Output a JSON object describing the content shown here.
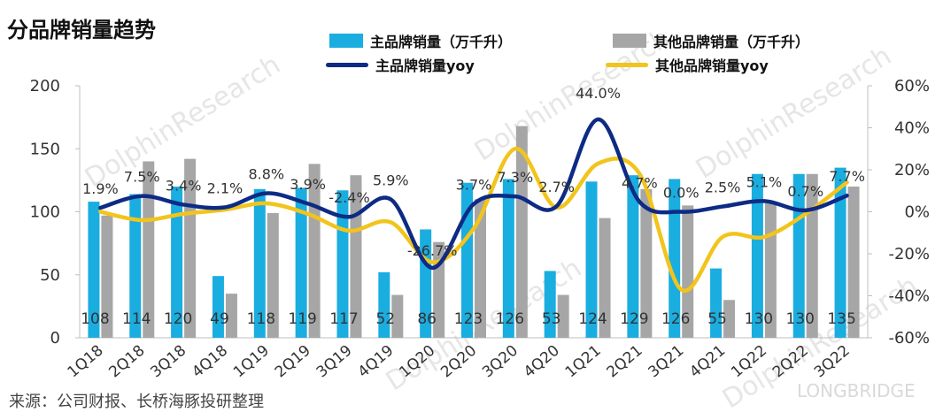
{
  "header": {
    "title": "分品牌销量趋势"
  },
  "footer": {
    "source": "来源：公司财报、长桥海豚投研整理"
  },
  "watermarks": {
    "brand": "DolphinResearch",
    "footer_brand": "LONGBRIDGE"
  },
  "legend": {
    "main_volume": "主品牌销量（万千升）",
    "other_volume": "其他品牌销量（万千升）",
    "main_yoy": "主品牌销量yoy",
    "other_yoy": "其他品牌销量yoy"
  },
  "colors": {
    "main_bar": "#1AADE0",
    "other_bar": "#A6A6A6",
    "main_line": "#0D2B85",
    "other_line": "#F2C41C",
    "axis": "#BFBFBF",
    "text": "#333333"
  },
  "chart_data": {
    "type": "bar",
    "title": "分品牌销量趋势",
    "xlabel": "",
    "ylabel": "",
    "categories": [
      "1Q18",
      "2Q18",
      "3Q18",
      "4Q18",
      "1Q19",
      "2Q19",
      "3Q19",
      "4Q19",
      "1Q20",
      "2Q20",
      "3Q20",
      "4Q20",
      "1Q21",
      "2Q21",
      "3Q21",
      "4Q21",
      "1Q22",
      "2Q22",
      "3Q22"
    ],
    "ylim": [
      0,
      200
    ],
    "y_ticks": [
      0,
      50,
      100,
      150,
      200
    ],
    "y2lim": [
      -60,
      60
    ],
    "y2_ticks": [
      "-60%",
      "-40%",
      "-20%",
      "0%",
      "20%",
      "40%",
      "60%"
    ],
    "grid": false,
    "legend_position": "top",
    "series": [
      {
        "name": "主品牌销量（万千升）",
        "kind": "bar",
        "axis": "left",
        "values": [
          108,
          114,
          120,
          49,
          118,
          119,
          117,
          52,
          86,
          123,
          126,
          53,
          124,
          129,
          126,
          55,
          130,
          130,
          135
        ],
        "labels": [
          "108",
          "114",
          "120",
          "49",
          "118",
          "119",
          "117",
          "52",
          "86",
          "123",
          "126",
          "53",
          "124",
          "129",
          "126",
          "55",
          "130",
          "130",
          "135"
        ]
      },
      {
        "name": "其他品牌销量（万千升）",
        "kind": "bar",
        "axis": "left",
        "values": [
          97,
          140,
          142,
          35,
          99,
          138,
          129,
          34,
          76,
          110,
          168,
          34,
          95,
          118,
          105,
          30,
          108,
          130,
          120
        ]
      },
      {
        "name": "主品牌销量yoy",
        "kind": "line",
        "axis": "right",
        "values": [
          1.9,
          7.5,
          3.4,
          2.1,
          8.8,
          3.9,
          -2.4,
          5.9,
          -26.7,
          3.7,
          7.3,
          2.7,
          44.0,
          4.7,
          0.0,
          2.5,
          5.1,
          0.7,
          7.7
        ],
        "labels": [
          "1.9%",
          "7.5%",
          "3.4%",
          "2.1%",
          "8.8%",
          "3.9%",
          "-2.4%",
          "5.9%",
          "-26.7%",
          "3.7%",
          "7.3%",
          "2.7%",
          "44.0%",
          "4.7%",
          "0.0%",
          "2.5%",
          "5.1%",
          "0.7%",
          "7.7%"
        ]
      },
      {
        "name": "其他品牌销量yoy",
        "kind": "line",
        "axis": "right",
        "values": [
          0,
          -4,
          -1,
          1,
          4,
          -1,
          -9,
          -5,
          -24,
          -8,
          30,
          2,
          23,
          18,
          -37,
          -12,
          -12,
          -1,
          14
        ]
      }
    ]
  }
}
